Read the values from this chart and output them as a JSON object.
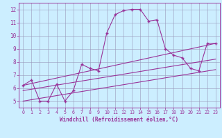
{
  "line1_x": [
    0,
    1,
    2,
    3,
    4,
    5,
    6,
    7,
    8,
    9,
    10,
    11,
    12,
    13,
    14,
    15,
    16,
    17,
    18,
    19,
    20,
    21,
    22,
    23
  ],
  "line1_y": [
    6.2,
    6.6,
    5.0,
    5.0,
    6.3,
    5.0,
    5.8,
    7.8,
    7.5,
    7.3,
    10.2,
    11.6,
    11.9,
    12.0,
    12.0,
    11.1,
    11.2,
    9.0,
    8.5,
    8.3,
    7.5,
    7.3,
    9.4,
    9.4
  ],
  "line2_x": [
    0,
    23
  ],
  "line2_y": [
    6.2,
    9.4
  ],
  "line3_x": [
    0,
    23
  ],
  "line3_y": [
    5.8,
    8.2
  ],
  "line4_x": [
    0,
    23
  ],
  "line4_y": [
    5.0,
    7.4
  ],
  "color": "#993399",
  "bg_color": "#cceeff",
  "grid_color": "#9999bb",
  "xlim": [
    -0.5,
    23.5
  ],
  "ylim": [
    4.5,
    12.5
  ],
  "yticks": [
    5,
    6,
    7,
    8,
    9,
    10,
    11,
    12
  ],
  "xticks": [
    0,
    1,
    2,
    3,
    4,
    5,
    6,
    7,
    8,
    9,
    10,
    11,
    12,
    13,
    14,
    15,
    16,
    17,
    18,
    19,
    20,
    21,
    22,
    23
  ],
  "xlabel": "Windchill (Refroidissement éolien,°C)",
  "marker": "+"
}
